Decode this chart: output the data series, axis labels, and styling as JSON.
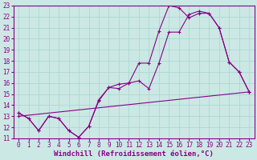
{
  "xlabel": "Windchill (Refroidissement éolien,°C)",
  "bg_color": "#cce8e4",
  "grid_color": "#aad8d4",
  "line_color": "#880088",
  "xlim": [
    -0.5,
    23.5
  ],
  "ylim": [
    11,
    23
  ],
  "xticks": [
    0,
    1,
    2,
    3,
    4,
    5,
    6,
    7,
    8,
    9,
    10,
    11,
    12,
    13,
    14,
    15,
    16,
    17,
    18,
    19,
    20,
    21,
    22,
    23
  ],
  "yticks": [
    11,
    12,
    13,
    14,
    15,
    16,
    17,
    18,
    19,
    20,
    21,
    22,
    23
  ],
  "line1_x": [
    0,
    1,
    2,
    3,
    4,
    5,
    6,
    7,
    8,
    9,
    10,
    11,
    12,
    13,
    14,
    15,
    16,
    17,
    18,
    19,
    20,
    21,
    22,
    23
  ],
  "line1_y": [
    13.3,
    12.8,
    11.7,
    13.0,
    12.8,
    11.7,
    11.1,
    12.1,
    14.4,
    15.6,
    15.9,
    16.0,
    17.8,
    17.8,
    20.7,
    23.0,
    22.8,
    21.9,
    22.3,
    22.3,
    21.0,
    17.9,
    17.0,
    15.2
  ],
  "line2_x": [
    0,
    1,
    2,
    3,
    4,
    5,
    6,
    7,
    8,
    9,
    10,
    11,
    12,
    13,
    14,
    15,
    16,
    17,
    18,
    19,
    20,
    21,
    22,
    23
  ],
  "line2_y": [
    13.3,
    12.8,
    11.7,
    13.0,
    12.8,
    11.7,
    11.1,
    12.1,
    14.5,
    15.6,
    15.5,
    16.0,
    16.2,
    15.5,
    17.8,
    20.6,
    20.6,
    22.2,
    22.5,
    22.3,
    21.0,
    17.9,
    17.0,
    15.2
  ],
  "line3_x": [
    0,
    23
  ],
  "line3_y": [
    13.0,
    15.2
  ],
  "xlabel_fontsize": 6.5,
  "tick_fontsize": 5.5
}
